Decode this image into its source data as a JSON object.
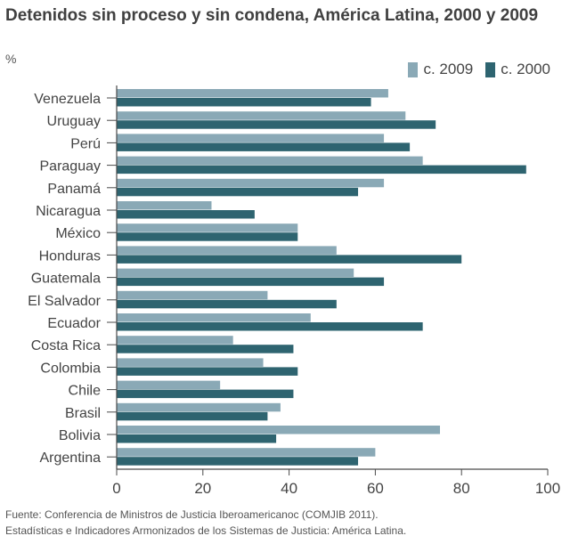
{
  "header": {
    "title": "Detenidos sin proceso y sin condena, América Latina, 2000 y 2009",
    "unit": "%"
  },
  "colors": {
    "c2009": "#8aa9b6",
    "c2000": "#2e6470",
    "axis": "#4a4a4a"
  },
  "chart_data": {
    "type": "bar",
    "orientation": "horizontal",
    "title": "Detenidos sin proceso y sin condena, América Latina, 2000 y 2009",
    "ylabel": "%",
    "categories": [
      "Venezuela",
      "Uruguay",
      "Perú",
      "Paraguay",
      "Panamá",
      "Nicaragua",
      "México",
      "Honduras",
      "Guatemala",
      "El Salvador",
      "Ecuador",
      "Costa Rica",
      "Colombia",
      "Chile",
      "Brasil",
      "Bolivia",
      "Argentina"
    ],
    "series": [
      {
        "name": "c. 2009",
        "values": [
          63,
          67,
          62,
          71,
          62,
          22,
          42,
          51,
          55,
          35,
          45,
          27,
          34,
          24,
          38,
          75,
          60
        ]
      },
      {
        "name": "c. 2000",
        "values": [
          59,
          74,
          68,
          95,
          56,
          32,
          42,
          80,
          62,
          51,
          71,
          41,
          42,
          41,
          35,
          37,
          56
        ]
      }
    ],
    "xlim": [
      0,
      100
    ],
    "xticks": [
      "0",
      "20",
      "40",
      "60",
      "80",
      "100"
    ],
    "legend_position": "top-right",
    "grid": false
  },
  "legend": {
    "items": [
      "c. 2009",
      "c. 2000"
    ]
  },
  "footer": {
    "source_line1": "Fuente: Conferencia de Ministros de Justicia Iberoamericanoc (COMJIB 2011).",
    "source_line2": "Estadísticas e Indicadores Armonizados de los Sistemas de Justicia: América Latina."
  }
}
